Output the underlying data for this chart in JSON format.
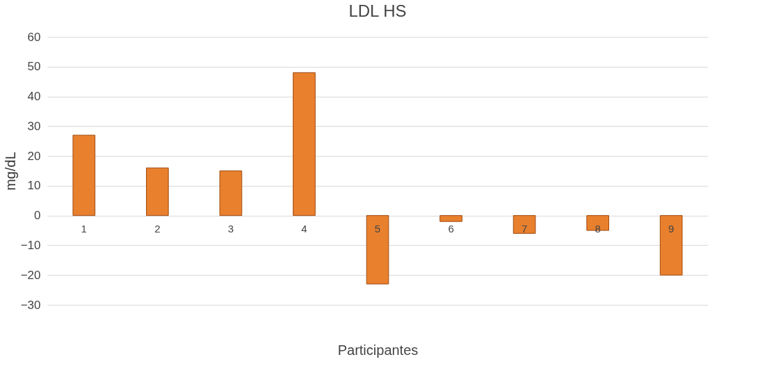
{
  "chart_data": {
    "type": "bar",
    "title": "LDL HS",
    "xlabel": "Participantes",
    "ylabel": "mg/dL",
    "categories": [
      "1",
      "2",
      "3",
      "4",
      "5",
      "6",
      "7",
      "8",
      "9"
    ],
    "values": [
      27,
      16,
      15,
      48,
      -23,
      -2,
      -6,
      -5,
      -20
    ],
    "color": "#e8802e",
    "ylim": [
      -30,
      60
    ],
    "yticks": [
      -30,
      -20,
      -10,
      0,
      10,
      20,
      30,
      40,
      50,
      60
    ],
    "grid": "y"
  }
}
